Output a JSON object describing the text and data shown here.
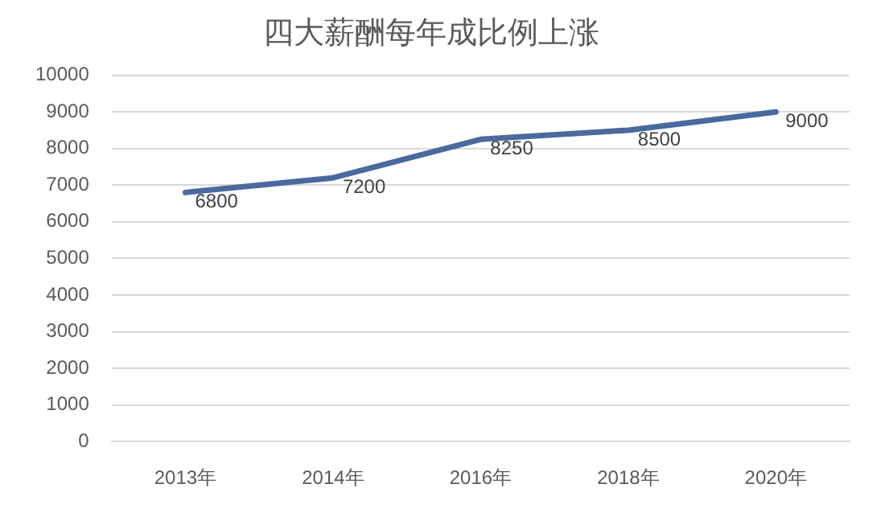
{
  "chart_data": {
    "type": "line",
    "title": "四大薪酬每年成比例上涨",
    "categories": [
      "2013年",
      "2014年",
      "2016年",
      "2018年",
      "2020年"
    ],
    "series": [
      {
        "color": "#4a6a9e",
        "values": [
          6800,
          7200,
          8250,
          8500,
          9000
        ]
      }
    ],
    "ylim": [
      0,
      10000
    ],
    "yticks": [
      0,
      1000,
      2000,
      3000,
      4000,
      5000,
      6000,
      7000,
      8000,
      9000,
      10000
    ],
    "grid": "y",
    "legend": false,
    "marker": "none",
    "line_style": "solid",
    "data_labels": true
  }
}
